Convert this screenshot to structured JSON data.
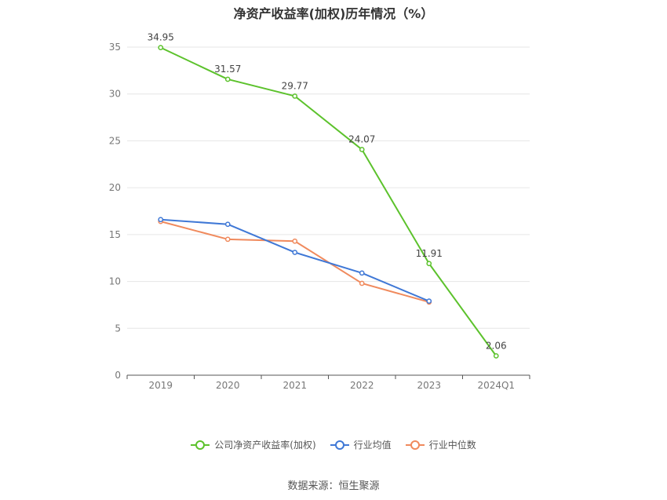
{
  "title": "净资产收益率(加权)历年情况（%）",
  "source": "数据来源：恒生聚源",
  "chart_data": {
    "type": "line",
    "title": "净资产收益率(加权)历年情况（%）",
    "xlabel": "",
    "ylabel": "",
    "categories": [
      "2019",
      "2020",
      "2021",
      "2022",
      "2023",
      "2024Q1"
    ],
    "ylim": [
      0,
      35
    ],
    "yticks": [
      0,
      5,
      10,
      15,
      20,
      25,
      30,
      35
    ],
    "grid": true,
    "legend_position": "bottom",
    "series": [
      {
        "name": "公司净资产收益率(加权)",
        "color": "#5cc22c",
        "values": [
          34.95,
          31.57,
          29.77,
          24.07,
          11.91,
          2.06
        ],
        "labels": [
          "34.95",
          "31.57",
          "29.77",
          "24.07",
          "11.91",
          "2.06"
        ]
      },
      {
        "name": "行业均值",
        "color": "#3f78d6",
        "values": [
          16.6,
          16.1,
          13.1,
          10.9,
          7.9,
          null
        ],
        "labels": []
      },
      {
        "name": "行业中位数",
        "color": "#f08a5d",
        "values": [
          16.4,
          14.5,
          14.3,
          9.8,
          7.8,
          null
        ],
        "labels": []
      }
    ]
  }
}
